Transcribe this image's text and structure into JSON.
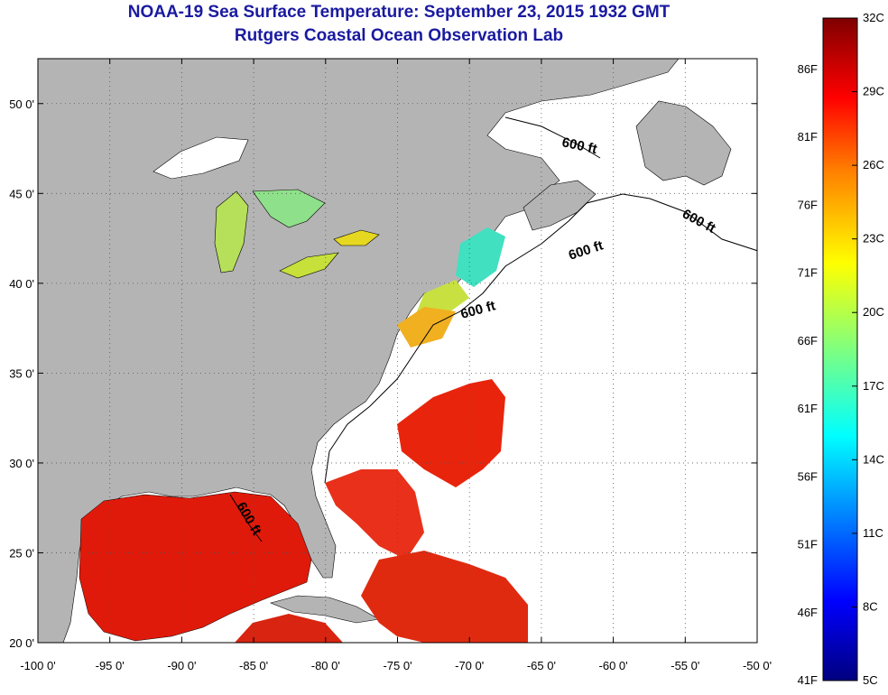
{
  "header": {
    "title": "NOAA-19 Sea Surface Temperature:  September 23, 2015 1932 GMT",
    "subtitle": "Rutgers Coastal Ocean Observation Lab"
  },
  "map": {
    "lon_range": [
      -100,
      -50
    ],
    "lat_range": [
      20,
      52.5
    ],
    "lon_ticks": [
      "-100 0'",
      "-95 0'",
      "-90 0'",
      "-85 0'",
      "-80 0'",
      "-75 0'",
      "-70 0'",
      "-65 0'",
      "-60 0'",
      "-55 0'",
      "-50 0'"
    ],
    "lat_ticks": [
      "20 0'",
      "25 0'",
      "30 0'",
      "35 0'",
      "40 0'",
      "45 0'",
      "50 0'"
    ],
    "contour_label": "600 ft",
    "land_color": "#b4b4b4",
    "ocean_no_data_color": "#ffffff",
    "grid": "dotted"
  },
  "colorbar": {
    "celsius": [
      "32C",
      "29C",
      "26C",
      "23C",
      "20C",
      "17C",
      "14C",
      "11C",
      "8C",
      "5C"
    ],
    "fahrenheit": [
      "86F",
      "81F",
      "76F",
      "71F",
      "66F",
      "61F",
      "56F",
      "51F",
      "46F",
      "41F"
    ],
    "range_c": [
      5,
      32
    ],
    "colors": [
      "#00007f",
      "#0000ff",
      "#007fff",
      "#00ffff",
      "#7fff7f",
      "#ffff00",
      "#ff7f00",
      "#ff0000",
      "#7f0000"
    ]
  }
}
